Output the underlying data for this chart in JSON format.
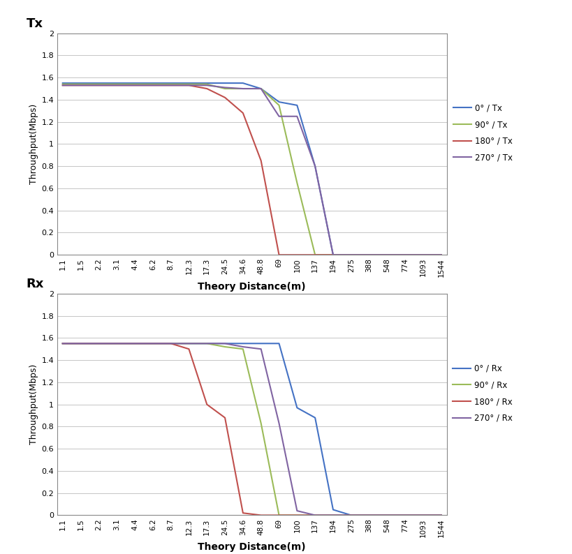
{
  "x_labels": [
    "1.1",
    "1.5",
    "2.2",
    "3.1",
    "4.4",
    "6.2",
    "8.7",
    "12.3",
    "17.3",
    "24.5",
    "34.6",
    "48.8",
    "69",
    "100",
    "137",
    "194",
    "275",
    "388",
    "548",
    "774",
    "1093",
    "1544"
  ],
  "tx_0": [
    1.55,
    1.55,
    1.55,
    1.55,
    1.55,
    1.55,
    1.55,
    1.55,
    1.55,
    1.55,
    1.55,
    1.5,
    1.38,
    1.35,
    0.8,
    0.0,
    0.0,
    0.0,
    0.0,
    0.0,
    0.0,
    0.0
  ],
  "tx_90": [
    1.54,
    1.54,
    1.54,
    1.54,
    1.54,
    1.54,
    1.54,
    1.54,
    1.54,
    1.5,
    1.5,
    1.5,
    1.35,
    0.65,
    0.0,
    0.0,
    0.0,
    0.0,
    0.0,
    0.0,
    0.0,
    0.0
  ],
  "tx_180": [
    1.53,
    1.53,
    1.53,
    1.53,
    1.53,
    1.53,
    1.53,
    1.53,
    1.5,
    1.42,
    1.28,
    0.85,
    0.0,
    0.0,
    0.0,
    0.0,
    0.0,
    0.0,
    0.0,
    0.0,
    0.0,
    0.0
  ],
  "tx_270": [
    1.53,
    1.53,
    1.53,
    1.53,
    1.53,
    1.53,
    1.53,
    1.53,
    1.53,
    1.51,
    1.5,
    1.5,
    1.25,
    1.25,
    0.8,
    0.0,
    0.0,
    0.0,
    0.0,
    0.0,
    0.0,
    0.0
  ],
  "rx_0": [
    1.55,
    1.55,
    1.55,
    1.55,
    1.55,
    1.55,
    1.55,
    1.55,
    1.55,
    1.55,
    1.55,
    1.55,
    1.55,
    0.97,
    0.88,
    0.05,
    0.0,
    0.0,
    0.0,
    0.0,
    0.0,
    0.0
  ],
  "rx_90": [
    1.55,
    1.55,
    1.55,
    1.55,
    1.55,
    1.55,
    1.55,
    1.55,
    1.55,
    1.52,
    1.5,
    0.83,
    0.0,
    0.0,
    0.0,
    0.0,
    0.0,
    0.0,
    0.0,
    0.0,
    0.0,
    0.0
  ],
  "rx_180": [
    1.55,
    1.55,
    1.55,
    1.55,
    1.55,
    1.55,
    1.55,
    1.5,
    1.0,
    0.88,
    0.02,
    0.0,
    0.0,
    0.0,
    0.0,
    0.0,
    0.0,
    0.0,
    0.0,
    0.0,
    0.0,
    0.0
  ],
  "rx_270": [
    1.55,
    1.55,
    1.55,
    1.55,
    1.55,
    1.55,
    1.55,
    1.55,
    1.55,
    1.55,
    1.52,
    1.5,
    0.83,
    0.04,
    0.0,
    0.0,
    0.0,
    0.0,
    0.0,
    0.0,
    0.0,
    0.0
  ],
  "color_0": "#4472C4",
  "color_90": "#9BBB59",
  "color_180": "#C0504D",
  "color_270": "#8064A2",
  "ylabel": "Throughput(Mbps)",
  "xlabel": "Theory Distance(m)",
  "title_tx": "Tx",
  "title_rx": "Rx",
  "ylim": [
    0,
    2
  ],
  "yticks": [
    0,
    0.2,
    0.4,
    0.6,
    0.8,
    1.0,
    1.2,
    1.4,
    1.6,
    1.8,
    2
  ],
  "legend_tx": [
    "0° / Tx",
    "90° / Tx",
    "180° / Tx",
    "270° / Tx"
  ],
  "legend_rx": [
    "0° / Rx",
    "90° / Rx",
    "180° / Rx",
    "270° / Rx"
  ]
}
